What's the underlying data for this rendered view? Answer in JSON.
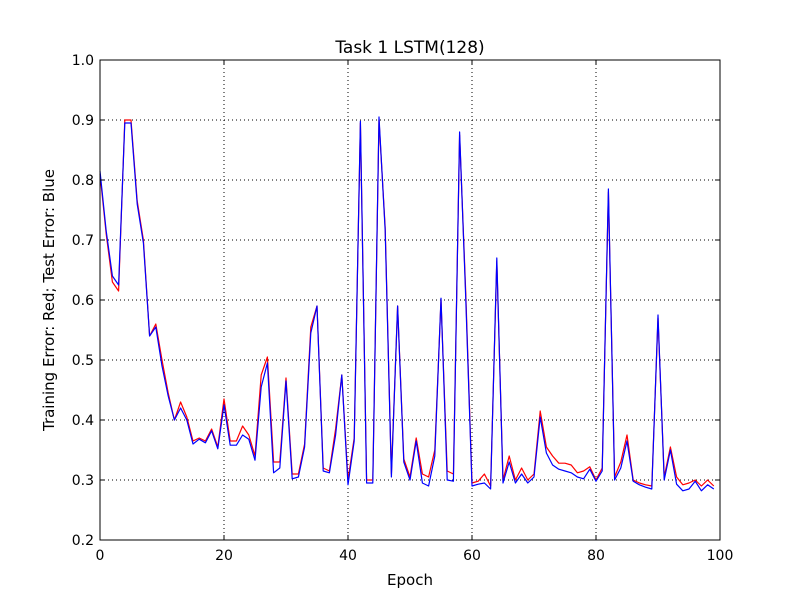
{
  "chart_data": {
    "type": "line",
    "title": "Task 1 LSTM(128)",
    "xlabel": "Epoch",
    "ylabel": "Training Error: Red; Test Error: Blue",
    "xlim": [
      0,
      100
    ],
    "ylim": [
      0.2,
      1.0
    ],
    "xticks": [
      "0",
      "20",
      "40",
      "60",
      "80",
      "100"
    ],
    "yticks": [
      "0.2",
      "0.3",
      "0.4",
      "0.5",
      "0.6",
      "0.7",
      "0.8",
      "0.9",
      "1.0"
    ],
    "grid": true,
    "series": [
      {
        "color": "#ff0000",
        "x": [
          0,
          1,
          2,
          3,
          4,
          5,
          6,
          7,
          8,
          9,
          10,
          11,
          12,
          13,
          14,
          15,
          16,
          17,
          18,
          19,
          20,
          21,
          22,
          23,
          24,
          25,
          26,
          27,
          28,
          29,
          30,
          31,
          32,
          33,
          34,
          35,
          36,
          37,
          38,
          39,
          40,
          41,
          42,
          43,
          44,
          45,
          46,
          47,
          48,
          49,
          50,
          51,
          52,
          53,
          54,
          55,
          56,
          57,
          58,
          59,
          60,
          61,
          62,
          63,
          64,
          65,
          66,
          67,
          68,
          69,
          70,
          71,
          72,
          73,
          74,
          75,
          76,
          77,
          78,
          79,
          80,
          81,
          82,
          83,
          84,
          85,
          86,
          87,
          88,
          89,
          90,
          91,
          92,
          93,
          94,
          95,
          96,
          97,
          98,
          99
        ],
        "values": [
          0.81,
          0.71,
          0.63,
          0.615,
          0.9,
          0.9,
          0.765,
          0.7,
          0.54,
          0.56,
          0.5,
          0.445,
          0.4,
          0.43,
          0.405,
          0.365,
          0.37,
          0.365,
          0.385,
          0.355,
          0.435,
          0.365,
          0.365,
          0.39,
          0.375,
          0.34,
          0.475,
          0.505,
          0.33,
          0.33,
          0.47,
          0.31,
          0.31,
          0.36,
          0.555,
          0.59,
          0.32,
          0.315,
          0.385,
          0.475,
          0.3,
          0.37,
          0.895,
          0.3,
          0.3,
          0.9,
          0.72,
          0.31,
          0.59,
          0.335,
          0.305,
          0.37,
          0.31,
          0.305,
          0.35,
          0.6,
          0.315,
          0.31,
          0.875,
          0.61,
          0.295,
          0.298,
          0.31,
          0.29,
          0.665,
          0.3,
          0.34,
          0.3,
          0.32,
          0.3,
          0.31,
          0.415,
          0.355,
          0.34,
          0.328,
          0.328,
          0.325,
          0.312,
          0.315,
          0.322,
          0.3,
          0.32,
          0.78,
          0.305,
          0.33,
          0.375,
          0.3,
          0.295,
          0.292,
          0.29,
          0.57,
          0.305,
          0.355,
          0.305,
          0.292,
          0.295,
          0.3,
          0.29,
          0.3,
          0.29
        ]
      },
      {
        "color": "#0000ff",
        "x": [
          0,
          1,
          2,
          3,
          4,
          5,
          6,
          7,
          8,
          9,
          10,
          11,
          12,
          13,
          14,
          15,
          16,
          17,
          18,
          19,
          20,
          21,
          22,
          23,
          24,
          25,
          26,
          27,
          28,
          29,
          30,
          31,
          32,
          33,
          34,
          35,
          36,
          37,
          38,
          39,
          40,
          41,
          42,
          43,
          44,
          45,
          46,
          47,
          48,
          49,
          50,
          51,
          52,
          53,
          54,
          55,
          56,
          57,
          58,
          59,
          60,
          61,
          62,
          63,
          64,
          65,
          66,
          67,
          68,
          69,
          70,
          71,
          72,
          73,
          74,
          75,
          76,
          77,
          78,
          79,
          80,
          81,
          82,
          83,
          84,
          85,
          86,
          87,
          88,
          89,
          90,
          91,
          92,
          93,
          94,
          95,
          96,
          97,
          98,
          99
        ],
        "values": [
          0.815,
          0.715,
          0.64,
          0.625,
          0.895,
          0.895,
          0.76,
          0.695,
          0.54,
          0.555,
          0.49,
          0.44,
          0.4,
          0.42,
          0.4,
          0.36,
          0.368,
          0.362,
          0.382,
          0.352,
          0.425,
          0.358,
          0.358,
          0.375,
          0.368,
          0.333,
          0.455,
          0.495,
          0.312,
          0.32,
          0.465,
          0.302,
          0.305,
          0.355,
          0.545,
          0.59,
          0.315,
          0.312,
          0.375,
          0.475,
          0.292,
          0.365,
          0.898,
          0.295,
          0.295,
          0.905,
          0.715,
          0.305,
          0.59,
          0.33,
          0.3,
          0.365,
          0.295,
          0.29,
          0.34,
          0.603,
          0.3,
          0.298,
          0.88,
          0.6,
          0.29,
          0.293,
          0.295,
          0.285,
          0.67,
          0.295,
          0.33,
          0.295,
          0.31,
          0.295,
          0.305,
          0.405,
          0.345,
          0.325,
          0.318,
          0.315,
          0.312,
          0.305,
          0.302,
          0.318,
          0.298,
          0.315,
          0.785,
          0.3,
          0.32,
          0.365,
          0.298,
          0.292,
          0.288,
          0.285,
          0.575,
          0.3,
          0.35,
          0.293,
          0.282,
          0.285,
          0.298,
          0.282,
          0.292,
          0.285
        ]
      }
    ]
  }
}
